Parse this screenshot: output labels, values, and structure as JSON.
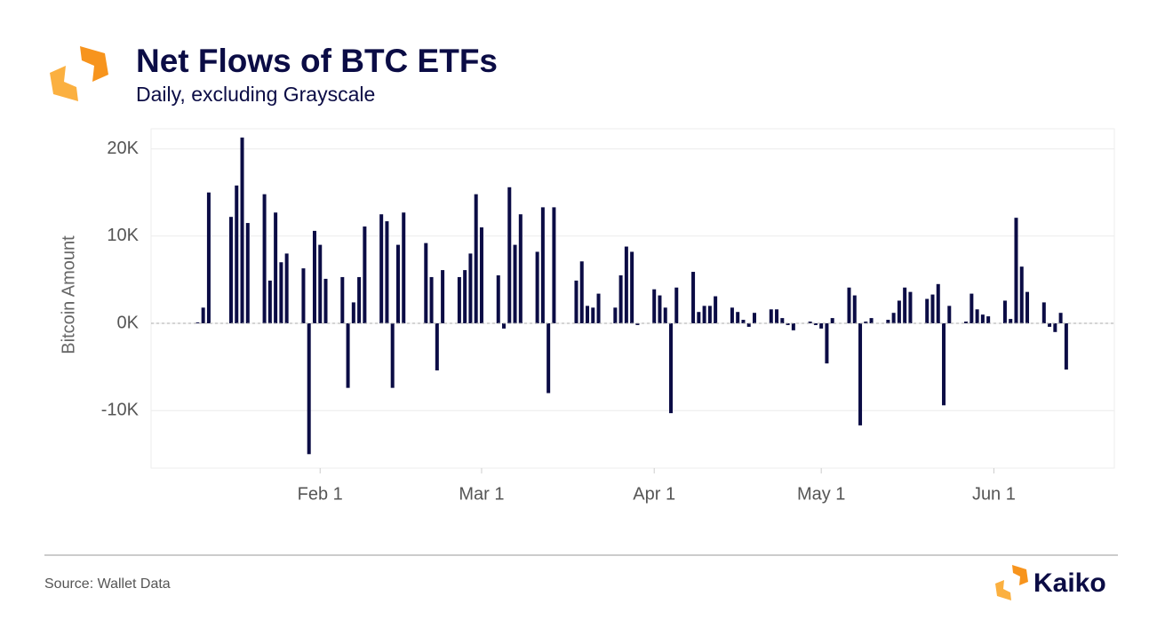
{
  "chart_data": {
    "type": "bar",
    "title": "Net Flows of BTC ETFs",
    "subtitle": "Daily, excluding Grayscale",
    "ylabel": "Bitcoin Amount",
    "source": "Source: Wallet Data",
    "brand": "Kaiko",
    "color": "#0b0c45",
    "grid": true,
    "ylim": [
      -16600,
      22300
    ],
    "yticks": [
      {
        "value": -10000,
        "label": "-10K"
      },
      {
        "value": 0,
        "label": "0K"
      },
      {
        "value": 10000,
        "label": "10K"
      },
      {
        "value": 20000,
        "label": "20K"
      }
    ],
    "xlim": [
      "Jan 1",
      "Jun 22"
    ],
    "xticks": [
      "Feb 1",
      "Mar 1",
      "Apr 1",
      "May 1",
      "Jun 1"
    ],
    "x": [
      "Jan 10",
      "Jan 11",
      "Jan 12",
      "Jan 16",
      "Jan 17",
      "Jan 18",
      "Jan 19",
      "Jan 22",
      "Jan 23",
      "Jan 24",
      "Jan 25",
      "Jan 26",
      "Jan 29",
      "Jan 30",
      "Jan 31",
      "Feb 1",
      "Feb 2",
      "Feb 5",
      "Feb 6",
      "Feb 7",
      "Feb 8",
      "Feb 9",
      "Feb 12",
      "Feb 13",
      "Feb 14",
      "Feb 15",
      "Feb 16",
      "Feb 20",
      "Feb 21",
      "Feb 22",
      "Feb 23",
      "Feb 26",
      "Feb 27",
      "Feb 28",
      "Feb 29",
      "Mar 1",
      "Mar 4",
      "Mar 5",
      "Mar 6",
      "Mar 7",
      "Mar 8",
      "Mar 11",
      "Mar 12",
      "Mar 13",
      "Mar 14",
      "Mar 18",
      "Mar 19",
      "Mar 20",
      "Mar 21",
      "Mar 22",
      "Mar 25",
      "Mar 26",
      "Mar 27",
      "Mar 28",
      "Mar 29",
      "Apr 1",
      "Apr 2",
      "Apr 3",
      "Apr 4",
      "Apr 5",
      "Apr 8",
      "Apr 9",
      "Apr 10",
      "Apr 11",
      "Apr 12",
      "Apr 15",
      "Apr 16",
      "Apr 17",
      "Apr 18",
      "Apr 19",
      "Apr 22",
      "Apr 23",
      "Apr 24",
      "Apr 25",
      "Apr 26",
      "Apr 29",
      "Apr 30",
      "May 1",
      "May 2",
      "May 3",
      "May 6",
      "May 7",
      "May 8",
      "May 9",
      "May 10",
      "May 13",
      "May 14",
      "May 15",
      "May 16",
      "May 17",
      "May 20",
      "May 21",
      "May 22",
      "May 23",
      "May 24",
      "May 27",
      "May 28",
      "May 29",
      "May 30",
      "May 31",
      "Jun 3",
      "Jun 4",
      "Jun 5",
      "Jun 6",
      "Jun 7",
      "Jun 10",
      "Jun 11",
      "Jun 12",
      "Jun 13",
      "Jun 14"
    ],
    "values": [
      100,
      1800,
      15000,
      12200,
      15800,
      21300,
      11500,
      14800,
      4900,
      12700,
      7000,
      8000,
      6300,
      -15000,
      10600,
      9000,
      5100,
      5300,
      -7400,
      2400,
      5300,
      11100,
      12500,
      11700,
      -7400,
      9000,
      12700,
      9200,
      5300,
      -5400,
      6100,
      5300,
      6100,
      8000,
      14800,
      11000,
      5500,
      -600,
      15600,
      9000,
      12500,
      8200,
      13300,
      -8000,
      13300,
      4900,
      7100,
      2000,
      1800,
      3400,
      1800,
      5500,
      8800,
      8200,
      -200,
      3900,
      3200,
      1800,
      -10300,
      4100,
      5900,
      1300,
      2000,
      2000,
      3100,
      1800,
      1300,
      400,
      -400,
      1200,
      1600,
      1600,
      600,
      -200,
      -800,
      200,
      -200,
      -600,
      -4600,
      600,
      4100,
      3200,
      -11700,
      200,
      600,
      400,
      1200,
      2600,
      4100,
      3600,
      2800,
      3300,
      4500,
      -9400,
      2000,
      200,
      3400,
      1600,
      1000,
      800,
      2600,
      500,
      12100,
      6500,
      3600,
      2400,
      -400,
      -1000,
      1200,
      -5300
    ]
  }
}
